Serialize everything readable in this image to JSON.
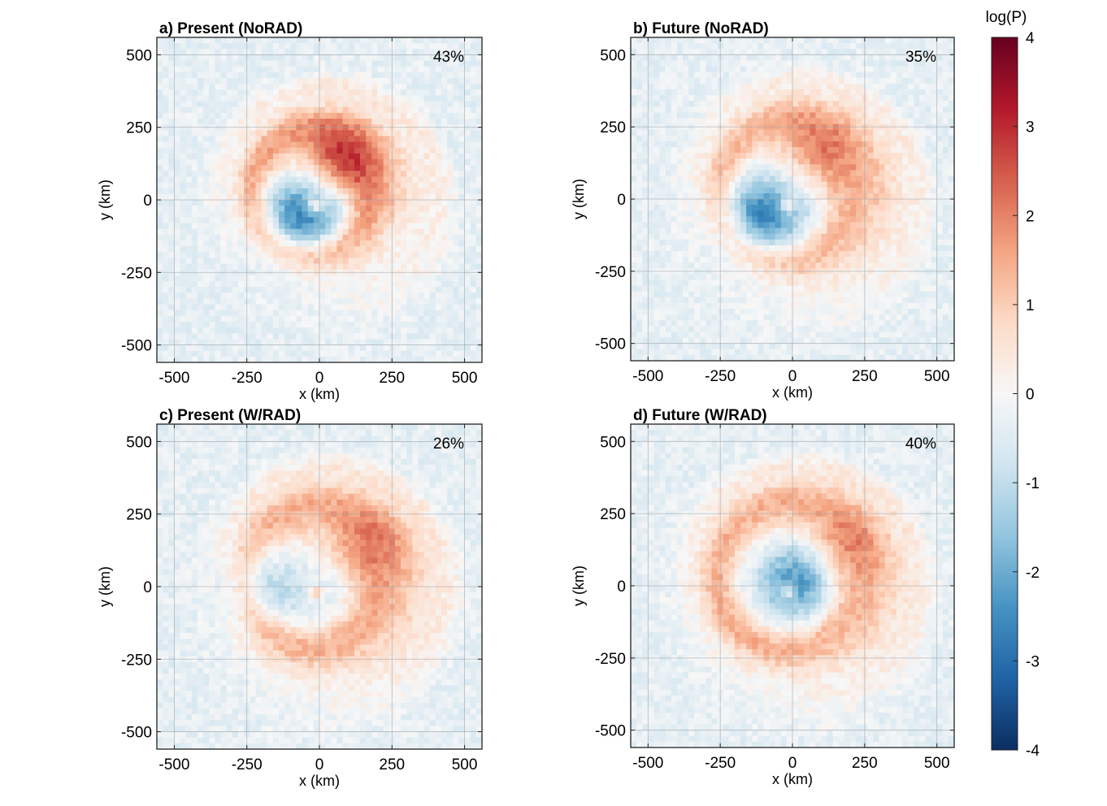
{
  "colorbar": {
    "label": "log(P)",
    "range": [
      -4,
      4
    ],
    "ticks": [
      4,
      3,
      2,
      1,
      0,
      -1,
      -2,
      -3,
      -4
    ],
    "tick_labels": [
      "4",
      "3",
      "2",
      "1",
      "0",
      "-1",
      "-2",
      "-3",
      "-4"
    ],
    "colormap": "RdBu_r",
    "colors": [
      "#0b2e61",
      "#1f63a6",
      "#4593c3",
      "#92c5de",
      "#d1e5f0",
      "#f7f7f7",
      "#fddbc7",
      "#f4a582",
      "#d6604d",
      "#b2182b",
      "#67001f"
    ]
  },
  "chart_data": [
    {
      "type": "heatmap",
      "title": "a) Present (NoRAD)",
      "annotation": "43%",
      "xlabel": "x (km)",
      "ylabel": "y (km)",
      "xlim": [
        -560,
        560
      ],
      "ylim": [
        -560,
        560
      ],
      "xticks": [
        -500,
        -250,
        0,
        250,
        500
      ],
      "yticks": [
        500,
        250,
        0,
        -250,
        -500
      ],
      "xtick_labels": [
        "-500",
        "-250",
        "0",
        "250",
        "500"
      ],
      "ytick_labels": [
        "500",
        "250",
        "0",
        "-250",
        "-500"
      ],
      "grid": true,
      "field": {
        "ring_radius_km": 210,
        "ring_width_km": 90,
        "ring_peak": 2.0,
        "max_core": {
          "x_km": 70,
          "y_km": 130,
          "value": 3.6
        },
        "min_core": {
          "x_km": -70,
          "y_km": -60,
          "value": -2.3
        },
        "eye_value": 1.8
      }
    },
    {
      "type": "heatmap",
      "title": "b) Future (NoRAD)",
      "annotation": "35%",
      "xlabel": "x (km)",
      "ylabel": "y (km)",
      "xlim": [
        -560,
        560
      ],
      "ylim": [
        -560,
        560
      ],
      "xticks": [
        -500,
        -250,
        0,
        250,
        500
      ],
      "yticks": [
        500,
        250,
        0,
        -250,
        -500
      ],
      "xtick_labels": [
        "-500",
        "-250",
        "0",
        "250",
        "500"
      ],
      "ytick_labels": [
        "500",
        "250",
        "0",
        "-250",
        "-500"
      ],
      "grid": true,
      "field": {
        "ring_radius_km": 240,
        "ring_width_km": 100,
        "ring_peak": 1.7,
        "max_core": {
          "x_km": 80,
          "y_km": 160,
          "value": 2.8
        },
        "min_core": {
          "x_km": -110,
          "y_km": -60,
          "value": -2.4
        },
        "eye_value": 1.5
      }
    },
    {
      "type": "heatmap",
      "title": "c) Present (W/RAD)",
      "annotation": "26%",
      "xlabel": "x (km)",
      "ylabel": "y (km)",
      "xlim": [
        -560,
        560
      ],
      "ylim": [
        -560,
        560
      ],
      "xticks": [
        -500,
        -250,
        0,
        250,
        500
      ],
      "yticks": [
        500,
        250,
        0,
        -250,
        -500
      ],
      "xtick_labels": [
        "-500",
        "-250",
        "0",
        "250",
        "500"
      ],
      "ytick_labels": [
        "500",
        "250",
        "0",
        "-250",
        "-500"
      ],
      "grid": true,
      "field": {
        "ring_radius_km": 240,
        "ring_width_km": 110,
        "ring_peak": 1.8,
        "max_core": {
          "x_km": 170,
          "y_km": 150,
          "value": 2.6
        },
        "min_core": {
          "x_km": -200,
          "y_km": 0,
          "value": -1.3
        },
        "eye_value": 1.5
      }
    },
    {
      "type": "heatmap",
      "title": "d) Future (W/RAD)",
      "annotation": "40%",
      "xlabel": "x (km)",
      "ylabel": "y (km)",
      "xlim": [
        -560,
        560
      ],
      "ylim": [
        -560,
        560
      ],
      "xticks": [
        -500,
        -250,
        0,
        250,
        500
      ],
      "yticks": [
        500,
        250,
        0,
        -250,
        -500
      ],
      "xtick_labels": [
        "-500",
        "-250",
        "0",
        "250",
        "500"
      ],
      "ytick_labels": [
        "500",
        "250",
        "0",
        "-250",
        "-500"
      ],
      "grid": true,
      "field": {
        "ring_radius_km": 250,
        "ring_width_km": 105,
        "ring_peak": 1.8,
        "max_core": {
          "x_km": 190,
          "y_km": 150,
          "value": 2.5
        },
        "min_core": {
          "x_km": 20,
          "y_km": 25,
          "value": -2.0
        },
        "eye_value": 1.6
      }
    }
  ]
}
